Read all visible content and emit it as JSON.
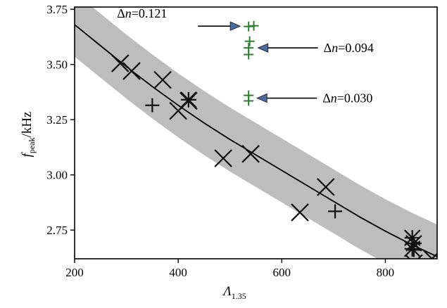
{
  "chart_data": {
    "type": "scatter",
    "xlabel": {
      "main": "Λ",
      "sub": "1.35"
    },
    "ylabel": {
      "main": "f",
      "sub": "peak",
      "suffix": "/kHz"
    },
    "xlim": [
      200,
      900
    ],
    "ylim": [
      2.62,
      3.76
    ],
    "x_ticks": [
      200,
      400,
      600,
      800
    ],
    "y_ticks": [
      2.75,
      3.0,
      3.25,
      3.5,
      3.75
    ],
    "x_tick_labels": [
      "200",
      "400",
      "600",
      "800"
    ],
    "y_tick_labels": [
      "2.75",
      "3.00",
      "3.25",
      "3.50",
      "3.75"
    ],
    "grid": false,
    "fit_band_color": "#bdbdbd",
    "fit_line_color": "#000000",
    "annotation_color": "#2e7d32",
    "arrow_fill": "#4a6da0",
    "fit_curve": {
      "x": [
        200,
        250,
        300,
        350,
        400,
        450,
        500,
        550,
        600,
        650,
        700,
        750,
        800,
        850,
        900
      ],
      "y": [
        3.68,
        3.585,
        3.49,
        3.4,
        3.315,
        3.235,
        3.16,
        3.09,
        3.02,
        2.95,
        2.88,
        2.81,
        2.745,
        2.685,
        2.63
      ],
      "band_halfwidth": 0.145
    },
    "series": [
      {
        "marker": "x",
        "points": [
          {
            "x": 288,
            "y": 3.505
          },
          {
            "x": 310,
            "y": 3.47
          },
          {
            "x": 370,
            "y": 3.43
          },
          {
            "x": 400,
            "y": 3.29
          },
          {
            "x": 420,
            "y": 3.335
          },
          {
            "x": 487,
            "y": 3.075
          },
          {
            "x": 540,
            "y": 3.095
          },
          {
            "x": 635,
            "y": 2.83
          },
          {
            "x": 685,
            "y": 2.945
          },
          {
            "x": 855,
            "y": 2.6
          },
          {
            "x": 890,
            "y": 2.62
          }
        ]
      },
      {
        "marker": "plus",
        "points": [
          {
            "x": 350,
            "y": 3.315
          },
          {
            "x": 703,
            "y": 2.835
          },
          {
            "x": 855,
            "y": 2.66
          }
        ]
      },
      {
        "marker": "star",
        "points": [
          {
            "x": 420,
            "y": 3.34
          },
          {
            "x": 852,
            "y": 2.715
          },
          {
            "x": 852,
            "y": 2.665
          },
          {
            "x": 855,
            "y": 2.69
          }
        ]
      }
    ],
    "annotations": [
      {
        "label_main": "Δ",
        "label_var": "n",
        "label_value": "=0.121",
        "points": [
          {
            "x": 536,
            "y": 3.672
          },
          {
            "x": 546,
            "y": 3.675
          }
        ],
        "arrow_direction": "right"
      },
      {
        "label_main": "Δ",
        "label_var": "n",
        "label_value": "=0.094",
        "points": [
          {
            "x": 536,
            "y": 3.575
          },
          {
            "x": 536,
            "y": 3.545
          },
          {
            "x": 538,
            "y": 3.605
          }
        ],
        "arrow_direction": "left"
      },
      {
        "label_main": "Δ",
        "label_var": "n",
        "label_value": "=0.030",
        "points": [
          {
            "x": 536,
            "y": 3.36
          },
          {
            "x": 536,
            "y": 3.335
          }
        ],
        "arrow_direction": "left"
      }
    ]
  }
}
